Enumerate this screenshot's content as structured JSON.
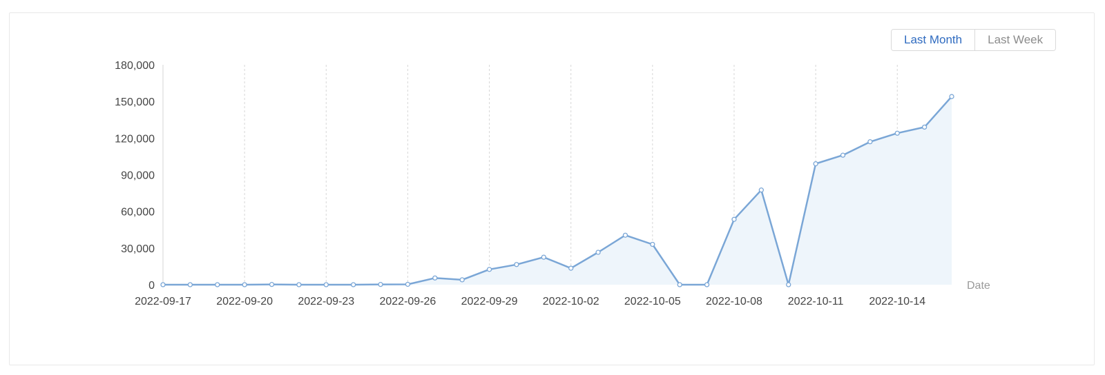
{
  "controls": {
    "range_options": [
      {
        "label": "Last Month",
        "active": true
      },
      {
        "label": "Last Week",
        "active": false
      }
    ]
  },
  "colors": {
    "line": "#7aa6d6",
    "area": "#eef5fb",
    "grid": "#d6d6d6",
    "point_fill": "#ffffff",
    "active_option": "#2f6bc0"
  },
  "chart_data": {
    "type": "area",
    "xlabel": "Date",
    "ylabel": "",
    "ylim": [
      0,
      180000
    ],
    "yticks": [
      0,
      30000,
      60000,
      90000,
      120000,
      150000,
      180000
    ],
    "ytick_labels": [
      "0",
      "30,000",
      "60,000",
      "90,000",
      "120,000",
      "150,000",
      "180,000"
    ],
    "xtick_labels": [
      "2022-09-17",
      "2022-09-20",
      "2022-09-23",
      "2022-09-26",
      "2022-09-29",
      "2022-10-02",
      "2022-10-05",
      "2022-10-08",
      "2022-10-11",
      "2022-10-14"
    ],
    "grid": "vertical dashed at x ticks",
    "x": [
      "2022-09-17",
      "2022-09-18",
      "2022-09-19",
      "2022-09-20",
      "2022-09-21",
      "2022-09-22",
      "2022-09-23",
      "2022-09-24",
      "2022-09-25",
      "2022-09-26",
      "2022-09-27",
      "2022-09-28",
      "2022-09-29",
      "2022-09-30",
      "2022-10-01",
      "2022-10-02",
      "2022-10-03",
      "2022-10-04",
      "2022-10-05",
      "2022-10-06",
      "2022-10-07",
      "2022-10-08",
      "2022-10-09",
      "2022-10-10",
      "2022-10-11",
      "2022-10-12",
      "2022-10-13",
      "2022-10-14",
      "2022-10-15",
      "2022-10-16"
    ],
    "values": [
      0,
      0,
      0,
      0,
      200,
      0,
      0,
      0,
      200,
      300,
      5500,
      4000,
      12500,
      16500,
      22500,
      13500,
      26500,
      40500,
      33000,
      0,
      0,
      53500,
      77500,
      0,
      99000,
      106000,
      117000,
      124000,
      129000,
      154000
    ]
  }
}
